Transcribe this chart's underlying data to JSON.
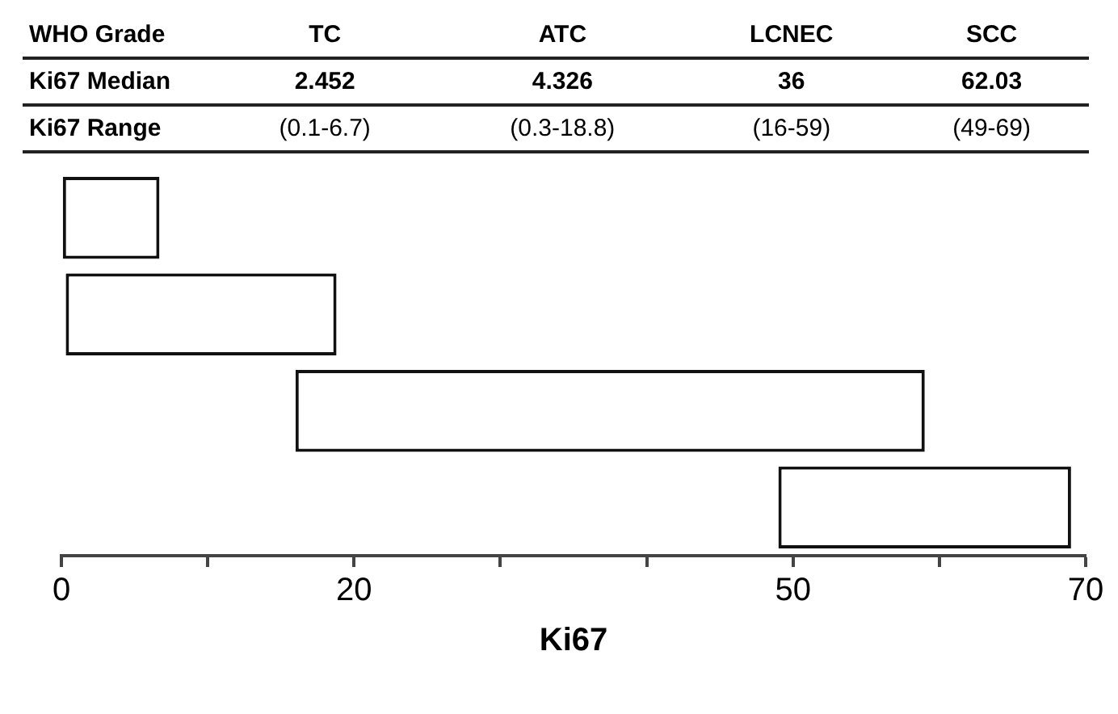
{
  "chart_data": {
    "type": "bar",
    "orientation": "horizontal",
    "xlabel": "Ki67",
    "categories": [
      null,
      null,
      null,
      null
    ],
    "base": [
      0.1,
      0.3,
      16,
      49
    ],
    "values": [
      6.6,
      18.5,
      43,
      20
    ],
    "color": "#ffffff",
    "xlim": [
      0,
      70
    ],
    "xticks": [
      0,
      {
        "value": 10,
        "label": null
      },
      20,
      {
        "value": 30,
        "label": null
      },
      {
        "value": 40,
        "label": null
      },
      50,
      {
        "value": 60,
        "label": null
      },
      70
    ],
    "tick_labels": "x",
    "legend": false,
    "annotations": [
      "WHO Grade",
      "Ki67 Median",
      "Ki67 Range",
      "TC",
      "ATC",
      "LCNEC",
      "SCC",
      "2.452",
      "4.326",
      "36",
      "62.03",
      "(0.1-6.7)",
      "(0.3-18.8)",
      "(16-59)",
      "(49-69)"
    ]
  }
}
